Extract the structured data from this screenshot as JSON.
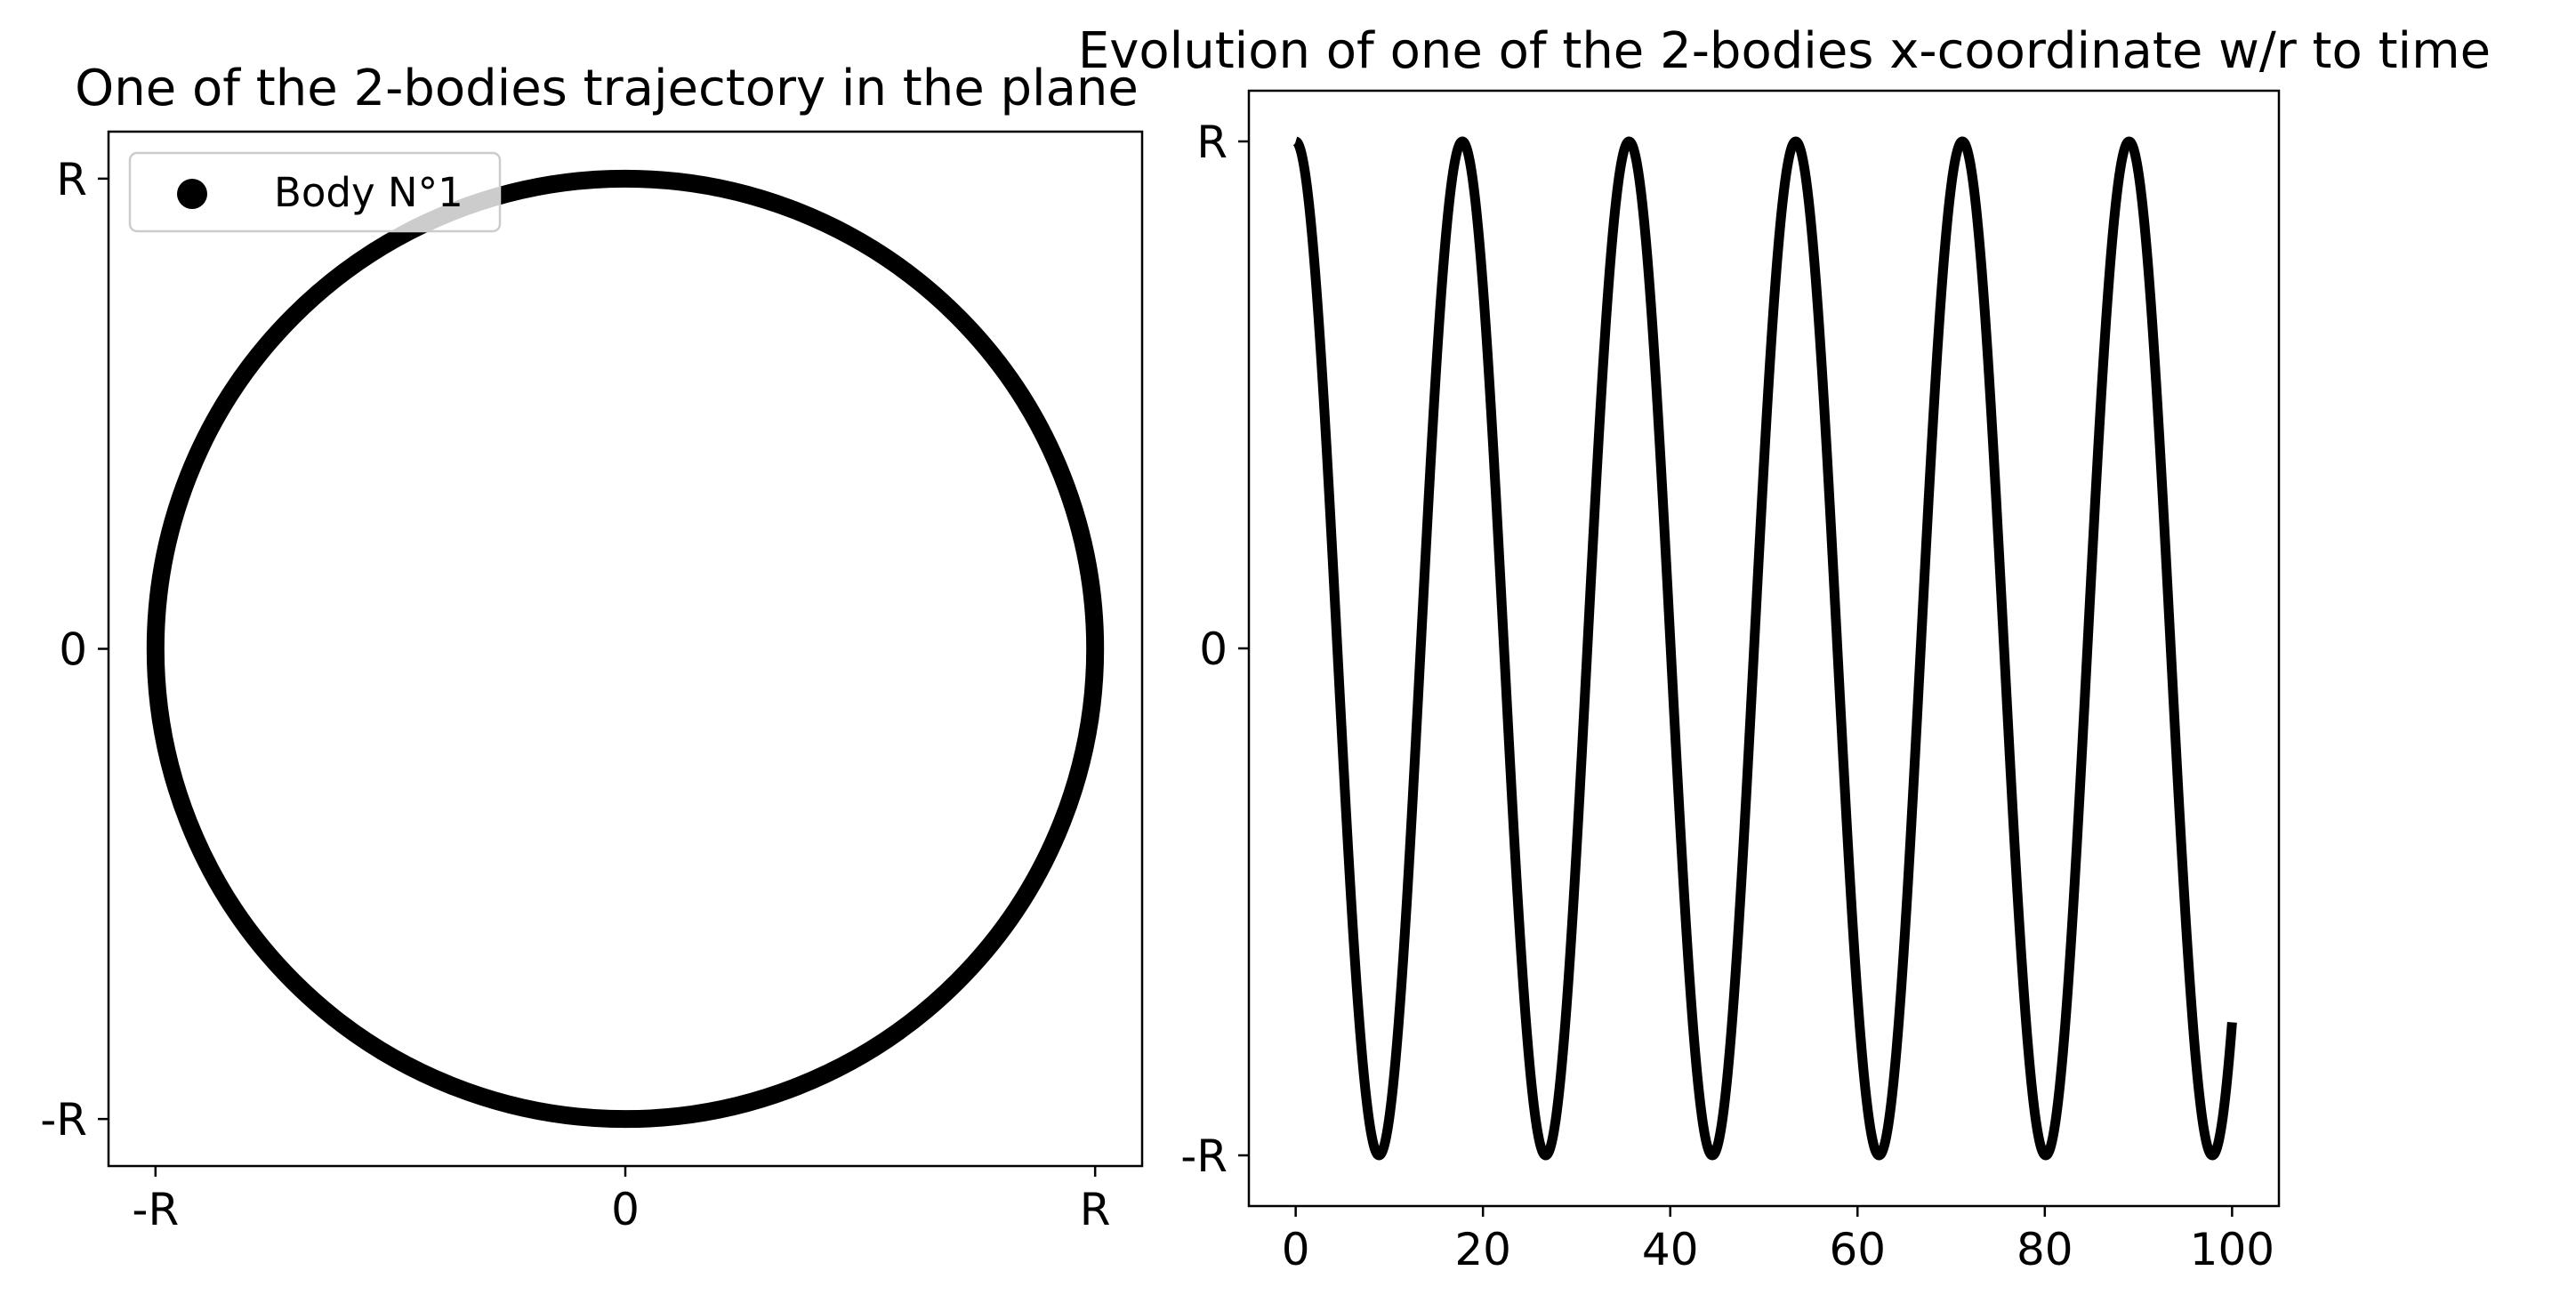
{
  "chart_data": [
    {
      "type": "line",
      "title": "One of the 2-bodies trajectory in the plane",
      "xlabel": "",
      "ylabel": "",
      "xlim": [
        -1.1,
        1.1
      ],
      "ylim": [
        -1.1,
        1.1
      ],
      "xticks": [
        {
          "value": -1,
          "label": "-R"
        },
        {
          "value": 0,
          "label": "0"
        },
        {
          "value": 1,
          "label": "R"
        }
      ],
      "yticks": [
        {
          "value": -1,
          "label": "-R"
        },
        {
          "value": 0,
          "label": "0"
        },
        {
          "value": 1,
          "label": "R"
        }
      ],
      "series": [
        {
          "name": "Body N°1",
          "color": "#000000",
          "marker": "circle",
          "shape": "circle",
          "center": [
            0,
            0
          ],
          "radius": 1
        }
      ],
      "legend": {
        "position": "top-left",
        "entries": [
          "Body N°1"
        ]
      },
      "grid": false
    },
    {
      "type": "line",
      "title": "Evolution of one of the 2-bodies x-coordinate w/r to time",
      "xlabel": "",
      "ylabel": "",
      "xlim": [
        -5,
        105
      ],
      "ylim": [
        -1.1,
        1.1
      ],
      "xticks": [
        {
          "value": 0,
          "label": "0"
        },
        {
          "value": 20,
          "label": "20"
        },
        {
          "value": 40,
          "label": "40"
        },
        {
          "value": 60,
          "label": "60"
        },
        {
          "value": 80,
          "label": "80"
        },
        {
          "value": 100,
          "label": "100"
        }
      ],
      "yticks": [
        {
          "value": -1,
          "label": "-R"
        },
        {
          "value": 0,
          "label": "0"
        },
        {
          "value": 1,
          "label": "R"
        }
      ],
      "series": [
        {
          "color": "#000000",
          "function": "cos",
          "amplitude": 1,
          "period": 17.8,
          "x_range": [
            0,
            100
          ],
          "peaks_x": [
            0,
            17.8,
            35.6,
            53.4,
            71.2,
            89.0
          ],
          "troughs_x": [
            8.9,
            26.7,
            44.5,
            62.3,
            80.1,
            97.9
          ],
          "end_point": [
            100,
            -0.7
          ]
        }
      ],
      "grid": false
    }
  ]
}
